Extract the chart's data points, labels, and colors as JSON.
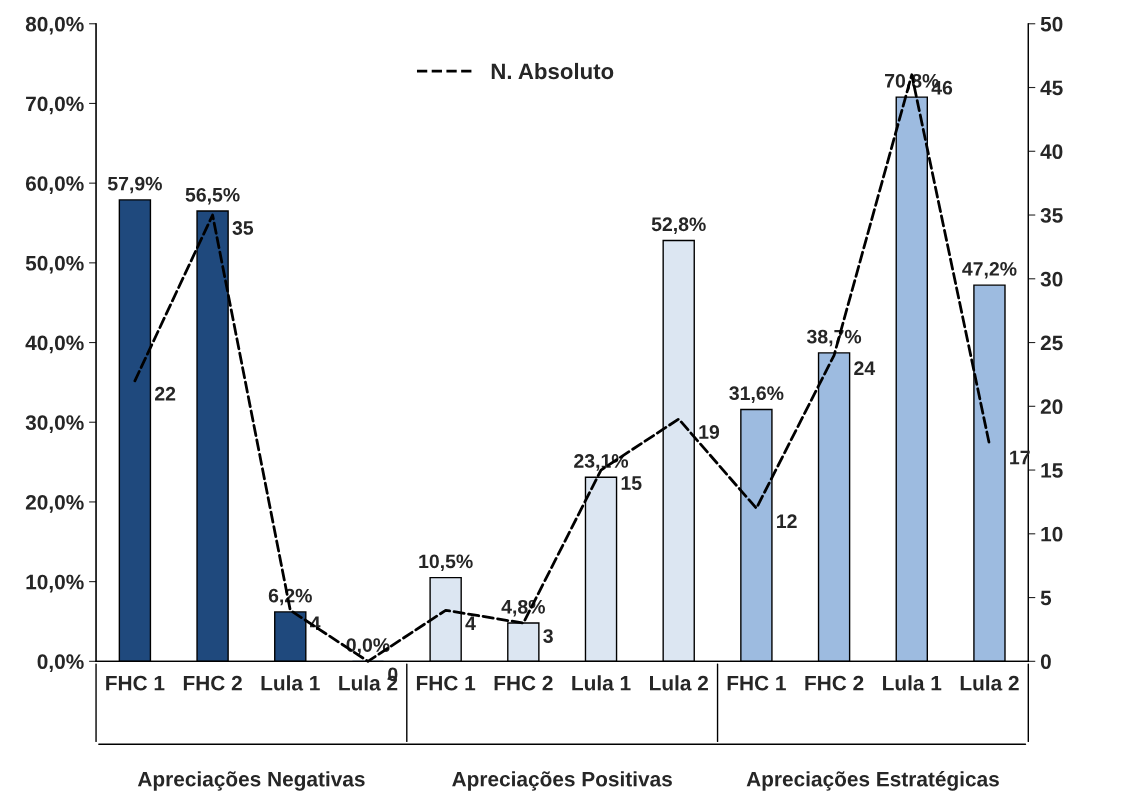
{
  "chart_data": {
    "type": "bar",
    "categories": [
      "FHC 1",
      "FHC 2",
      "Lula 1",
      "Lula 2",
      "FHC 1",
      "FHC 2",
      "Lula 1",
      "Lula 2",
      "FHC 1",
      "FHC 2",
      "Lula 1",
      "Lula 2"
    ],
    "series": [
      {
        "type": "bar",
        "colors": [
          "#1f497d",
          "#1f497d",
          "#1f497d",
          "#1f497d",
          "#dce6f2",
          "#dce6f2",
          "#dce6f2",
          "#dce6f2",
          "#9dbbe0",
          "#9dbbe0",
          "#9dbbe0",
          "#9dbbe0"
        ],
        "values": [
          57.9,
          56.5,
          6.2,
          0.0,
          10.5,
          4.8,
          23.1,
          52.8,
          31.6,
          38.7,
          70.8,
          47.2
        ],
        "value_labels": [
          "57,9%",
          "56,5%",
          "6,2%",
          "0,0%",
          "10,5%",
          "4,8%",
          "23,1%",
          "52,8%",
          "31,6%",
          "38,7%",
          "70,8%",
          "47,2%"
        ]
      },
      {
        "type": "line",
        "name": "N. Absoluto",
        "axis": "y2",
        "color": "#000000",
        "line_style": "dashed",
        "values": [
          22,
          35,
          4,
          0,
          4,
          3,
          15,
          19,
          12,
          24,
          46,
          17
        ],
        "value_labels": [
          "22",
          "35",
          "4",
          "0",
          "4",
          "3",
          "15",
          "19",
          "12",
          "24",
          "46",
          "17"
        ]
      }
    ],
    "annotations": [
      "Apreciações Negativas",
      "Apreciações Positivas",
      "Apreciações Estratégicas"
    ],
    "ylim": [
      0,
      80
    ],
    "yticks": [
      {
        "value": 0,
        "label": "0,0%"
      },
      {
        "value": 10,
        "label": "10,0%"
      },
      {
        "value": 20,
        "label": "20,0%"
      },
      {
        "value": 30,
        "label": "30,0%"
      },
      {
        "value": 40,
        "label": "40,0%"
      },
      {
        "value": 50,
        "label": "50,0%"
      },
      {
        "value": 60,
        "label": "60,0%"
      },
      {
        "value": 70,
        "label": "70,0%"
      },
      {
        "value": 80,
        "label": "80,0%"
      }
    ],
    "y2lim": [
      0,
      50
    ],
    "y2ticks": [
      0,
      5,
      10,
      15,
      20,
      25,
      30,
      35,
      40,
      45,
      50
    ],
    "legend": "top",
    "grid": false
  }
}
